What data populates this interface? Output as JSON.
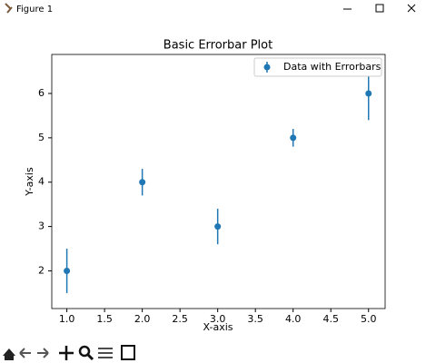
{
  "window": {
    "title": "Figure 1"
  },
  "chart_data": {
    "type": "errorbar",
    "title": "Basic Errorbar Plot",
    "x_label": "X-axis",
    "y_label": "Y-axis",
    "x": [
      1,
      2,
      3,
      4,
      5
    ],
    "series": [
      {
        "name": "Data with Errorbars",
        "color": "#1f77b4",
        "values": [
          2,
          4,
          3,
          5,
          6
        ],
        "errors": [
          0.5,
          0.3,
          0.4,
          0.2,
          0.6
        ]
      }
    ],
    "xlim": [
      0.8,
      5.22
    ],
    "ylim": [
      1.15,
      6.88
    ],
    "xticks": [
      {
        "value": 1,
        "label": "1.0"
      },
      {
        "value": 1.5,
        "label": "1.5"
      },
      {
        "value": 2,
        "label": "2.0"
      },
      {
        "value": 2.5,
        "label": "2.5"
      },
      {
        "value": 3,
        "label": "3.0"
      },
      {
        "value": 3.5,
        "label": "3.5"
      },
      {
        "value": 4,
        "label": "4.0"
      },
      {
        "value": 4.5,
        "label": "4.5"
      },
      {
        "value": 5,
        "label": "5.0"
      }
    ],
    "yticks": [
      2,
      3,
      4,
      5,
      6
    ],
    "legend": "upper right",
    "grid": false
  }
}
